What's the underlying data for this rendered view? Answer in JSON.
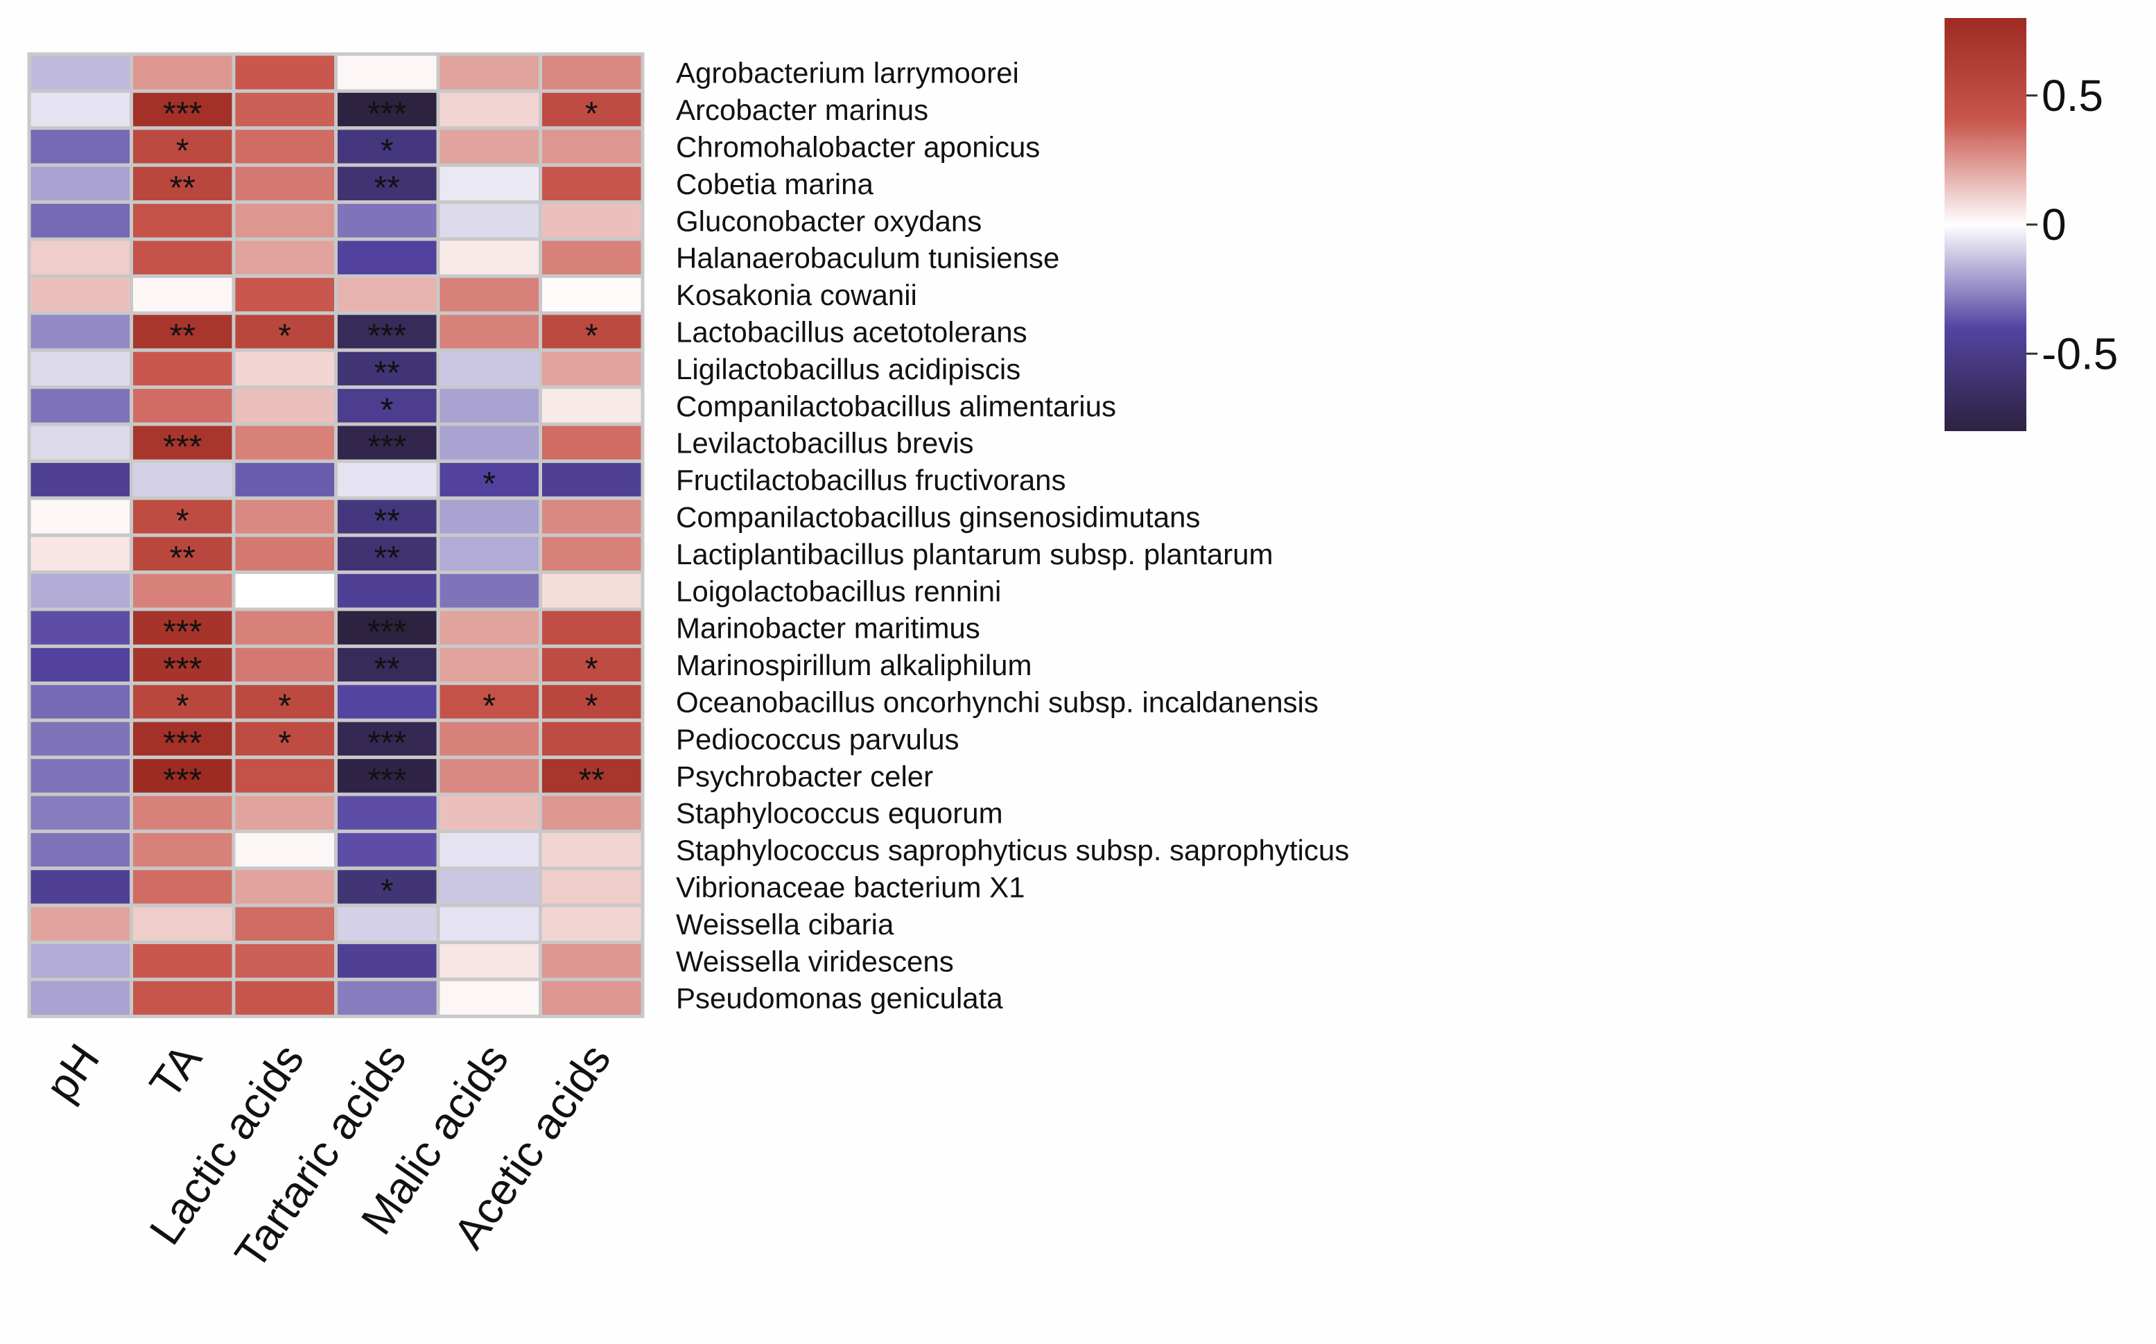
{
  "chart_data": {
    "type": "heatmap",
    "x_categories": [
      "pH",
      "TA",
      "Lactic acids",
      "Tartaric acids",
      "Malic acids",
      "Acetic acids"
    ],
    "y_categories": [
      "Agrobacterium larrymoorei",
      "Arcobacter marinus",
      "Chromohalobacter aponicus",
      "Cobetia marina",
      "Gluconobacter oxydans",
      "Halanaerobaculum tunisiense",
      "Kosakonia cowanii",
      "Lactobacillus acetotolerans",
      "Ligilactobacillus acidipiscis",
      "Companilactobacillus alimentarius",
      "Levilactobacillus brevis",
      "Fructilactobacillus fructivorans",
      "Companilactobacillus ginsenosidimutans",
      "Lactiplantibacillus plantarum subsp. plantarum",
      "Loigolactobacillus rennini",
      "Marinobacter maritimus",
      "Marinospirillum alkaliphilum",
      "Oceanobacillus oncorhynchi subsp. incaldanensis",
      "Pediococcus parvulus",
      "Psychrobacter celer",
      "Staphylococcus equorum",
      "Staphylococcus saprophyticus subsp. saprophyticus",
      "Vibrionaceae bacterium X1",
      "Weissella cibaria",
      "Weissella viridescens",
      "Pseudomonas geniculata"
    ],
    "values": [
      [
        -0.15,
        0.25,
        0.4,
        0.02,
        0.22,
        0.28
      ],
      [
        -0.06,
        0.75,
        0.38,
        -0.8,
        0.1,
        0.5
      ],
      [
        -0.32,
        0.52,
        0.35,
        -0.55,
        0.22,
        0.25
      ],
      [
        -0.2,
        0.55,
        0.32,
        -0.6,
        -0.05,
        0.42
      ],
      [
        -0.32,
        0.45,
        0.25,
        -0.3,
        -0.08,
        0.15
      ],
      [
        0.12,
        0.45,
        0.22,
        -0.42,
        0.05,
        0.3
      ],
      [
        0.15,
        0.02,
        0.4,
        0.18,
        0.3,
        0.01
      ],
      [
        -0.25,
        0.7,
        0.55,
        -0.7,
        0.3,
        0.52
      ],
      [
        -0.08,
        0.4,
        0.1,
        -0.58,
        -0.12,
        0.22
      ],
      [
        -0.3,
        0.35,
        0.15,
        -0.48,
        -0.2,
        0.05
      ],
      [
        -0.08,
        0.7,
        0.3,
        -0.75,
        -0.2,
        0.35
      ],
      [
        -0.45,
        -0.1,
        -0.35,
        -0.06,
        -0.42,
        -0.45
      ],
      [
        0.02,
        0.5,
        0.28,
        -0.55,
        -0.2,
        0.28
      ],
      [
        0.06,
        0.55,
        0.32,
        -0.6,
        -0.18,
        0.3
      ],
      [
        -0.18,
        0.3,
        0.0,
        -0.45,
        -0.3,
        0.08
      ],
      [
        -0.38,
        0.72,
        0.3,
        -0.82,
        0.22,
        0.48
      ],
      [
        -0.42,
        0.72,
        0.32,
        -0.7,
        0.22,
        0.5
      ],
      [
        -0.32,
        0.55,
        0.52,
        -0.4,
        0.45,
        0.55
      ],
      [
        -0.3,
        0.75,
        0.5,
        -0.72,
        0.3,
        0.5
      ],
      [
        -0.3,
        0.8,
        0.45,
        -0.78,
        0.28,
        0.7
      ],
      [
        -0.28,
        0.3,
        0.22,
        -0.38,
        0.15,
        0.25
      ],
      [
        -0.3,
        0.3,
        0.02,
        -0.38,
        -0.06,
        0.1
      ],
      [
        -0.45,
        0.35,
        0.22,
        -0.58,
        -0.12,
        0.12
      ],
      [
        0.22,
        0.12,
        0.35,
        -0.1,
        -0.06,
        0.1
      ],
      [
        -0.18,
        0.4,
        0.38,
        -0.45,
        0.06,
        0.25
      ],
      [
        -0.2,
        0.42,
        0.42,
        -0.28,
        0.02,
        0.25
      ]
    ],
    "significance": [
      [
        "",
        "",
        "",
        "",
        "",
        ""
      ],
      [
        "",
        "***",
        "",
        "***",
        "",
        "*"
      ],
      [
        "",
        "*",
        "",
        "*",
        "",
        ""
      ],
      [
        "",
        "**",
        "",
        "**",
        "",
        ""
      ],
      [
        "",
        "",
        "",
        "",
        "",
        ""
      ],
      [
        "",
        "",
        "",
        "",
        "",
        ""
      ],
      [
        "",
        "",
        "",
        "",
        "",
        ""
      ],
      [
        "",
        "**",
        "*",
        "***",
        "",
        "*"
      ],
      [
        "",
        "",
        "",
        "**",
        "",
        ""
      ],
      [
        "",
        "",
        "",
        "*",
        "",
        ""
      ],
      [
        "",
        "***",
        "",
        "***",
        "",
        ""
      ],
      [
        "",
        "",
        "",
        "",
        "*",
        ""
      ],
      [
        "",
        "*",
        "",
        "**",
        "",
        ""
      ],
      [
        "",
        "**",
        "",
        "**",
        "",
        ""
      ],
      [
        "",
        "",
        "",
        "",
        "",
        ""
      ],
      [
        "",
        "***",
        "",
        "***",
        "",
        ""
      ],
      [
        "",
        "***",
        "",
        "**",
        "",
        "*"
      ],
      [
        "",
        "*",
        "*",
        "",
        "*",
        "*"
      ],
      [
        "",
        "***",
        "*",
        "***",
        "",
        ""
      ],
      [
        "",
        "***",
        "",
        "***",
        "",
        "**"
      ],
      [
        "",
        "",
        "",
        "",
        "",
        ""
      ],
      [
        "",
        "",
        "",
        "",
        "",
        ""
      ],
      [
        "",
        "",
        "",
        "*",
        "",
        ""
      ],
      [
        "",
        "",
        "",
        "",
        "",
        ""
      ],
      [
        "",
        "",
        "",
        "",
        "",
        ""
      ],
      [
        "",
        "",
        "",
        "",
        "",
        ""
      ]
    ],
    "colorbar": {
      "range": [
        -0.8,
        0.8
      ],
      "ticks": [
        0.5,
        0,
        -0.5
      ],
      "tick_labels": [
        "0.5",
        "0",
        "-0.5"
      ],
      "colors": {
        "low": "#2d2240",
        "mid_low": "#5444a2",
        "mid": "#ffffff",
        "mid_high": "#c9574d",
        "high": "#9d2b22"
      }
    },
    "cell_border_color": "#c8c8c8"
  }
}
